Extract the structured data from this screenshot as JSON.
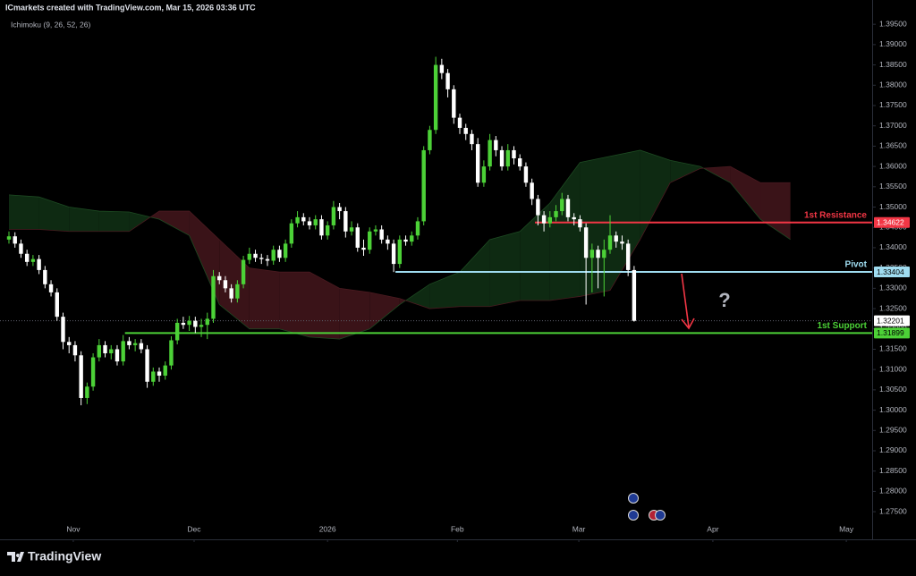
{
  "header": "ICmarkets created with TradingView.com, Mar 15, 2026 03:36 UTC",
  "brand": "TradingView",
  "chart_data": {
    "type": "candlestick",
    "indicator": "Ichimoku (9, 26, 52, 26)",
    "up_color": "#4cd137",
    "down_color": "#ffffff",
    "open": [
      1.342,
      1.3428,
      1.341,
      1.3385,
      1.3365,
      1.3372,
      1.3345,
      1.331,
      1.329,
      1.323,
      1.3168,
      1.316,
      1.3135,
      1.303,
      1.3058,
      1.313,
      1.316,
      1.314,
      1.315,
      1.312,
      1.317,
      1.316,
      1.3165,
      1.315,
      1.307,
      1.3095,
      1.3085,
      1.311,
      1.3172,
      1.3215,
      1.321,
      1.322,
      1.3205,
      1.321,
      1.3225,
      1.333,
      1.332,
      1.33,
      1.3275,
      1.331,
      1.337,
      1.3385,
      1.3375,
      1.3372,
      1.3368,
      1.3395,
      1.3375,
      1.341,
      1.346,
      1.3475,
      1.3465,
      1.3455,
      1.347,
      1.343,
      1.3455,
      1.35,
      1.349,
      1.344,
      1.345,
      1.34,
      1.3395,
      1.344,
      1.3445,
      1.342,
      1.341,
      1.336,
      1.342,
      1.3415,
      1.343,
      1.3465,
      1.364,
      1.369,
      1.385,
      1.383,
      1.379,
      1.372,
      1.3695,
      1.368,
      1.3655,
      1.356,
      1.36,
      1.3665,
      1.364,
      1.36,
      1.364,
      1.362,
      1.36,
      1.356,
      1.352,
      1.348,
      1.346,
      1.3475,
      1.349,
      1.352,
      1.3475,
      1.347,
      1.345,
      1.3375,
      1.3395,
      1.3375,
      1.3395,
      1.343,
      1.3415,
      1.341,
      1.3345
    ],
    "high": [
      1.344,
      1.3438,
      1.342,
      1.3395,
      1.3382,
      1.3382,
      1.3355,
      1.332,
      1.33,
      1.324,
      1.318,
      1.317,
      1.3145,
      1.3068,
      1.314,
      1.3175,
      1.317,
      1.316,
      1.316,
      1.3185,
      1.318,
      1.3175,
      1.3175,
      1.316,
      1.3105,
      1.3105,
      1.312,
      1.3182,
      1.3225,
      1.323,
      1.3232,
      1.323,
      1.3225,
      1.324,
      1.3345,
      1.334,
      1.333,
      1.331,
      1.332,
      1.338,
      1.34,
      1.3395,
      1.3385,
      1.3382,
      1.3405,
      1.3405,
      1.342,
      1.347,
      1.349,
      1.3485,
      1.3475,
      1.348,
      1.348,
      1.3465,
      1.3515,
      1.351,
      1.35,
      1.3465,
      1.346,
      1.342,
      1.345,
      1.3455,
      1.3455,
      1.343,
      1.342,
      1.343,
      1.343,
      1.344,
      1.3475,
      1.365,
      1.37,
      1.387,
      1.3865,
      1.384,
      1.38,
      1.373,
      1.3705,
      1.369,
      1.367,
      1.3615,
      1.368,
      1.3675,
      1.365,
      1.3655,
      1.365,
      1.363,
      1.361,
      1.357,
      1.353,
      1.349,
      1.349,
      1.3505,
      1.3535,
      1.353,
      1.3485,
      1.348,
      1.346,
      1.341,
      1.3405,
      1.342,
      1.348,
      1.344,
      1.343,
      1.342,
      1.3355
    ],
    "low": [
      1.341,
      1.34,
      1.3375,
      1.3355,
      1.3355,
      1.3335,
      1.33,
      1.328,
      1.322,
      1.315,
      1.314,
      1.312,
      1.3012,
      1.3015,
      1.3048,
      1.312,
      1.313,
      1.3125,
      1.311,
      1.311,
      1.315,
      1.3145,
      1.314,
      1.3055,
      1.306,
      1.307,
      1.3075,
      1.31,
      1.3162,
      1.32,
      1.3195,
      1.319,
      1.318,
      1.3175,
      1.3215,
      1.331,
      1.329,
      1.3265,
      1.3265,
      1.33,
      1.336,
      1.3365,
      1.336,
      1.3355,
      1.3358,
      1.3365,
      1.3365,
      1.34,
      1.345,
      1.3455,
      1.3445,
      1.3445,
      1.342,
      1.342,
      1.3445,
      1.347,
      1.3425,
      1.343,
      1.339,
      1.338,
      1.3385,
      1.343,
      1.341,
      1.3395,
      1.334,
      1.335,
      1.3405,
      1.3405,
      1.342,
      1.3455,
      1.363,
      1.368,
      1.3815,
      1.377,
      1.3705,
      1.368,
      1.3665,
      1.364,
      1.355,
      1.355,
      1.359,
      1.3625,
      1.359,
      1.359,
      1.3605,
      1.359,
      1.355,
      1.3505,
      1.3455,
      1.344,
      1.345,
      1.3465,
      1.348,
      1.3465,
      1.3455,
      1.344,
      1.326,
      1.329,
      1.33,
      1.328,
      1.3385,
      1.34,
      1.3395,
      1.333,
      1.3218
    ],
    "close": [
      1.3428,
      1.341,
      1.3385,
      1.3365,
      1.3372,
      1.3345,
      1.331,
      1.329,
      1.323,
      1.3168,
      1.316,
      1.3135,
      1.303,
      1.3058,
      1.313,
      1.316,
      1.314,
      1.315,
      1.312,
      1.317,
      1.316,
      1.3165,
      1.315,
      1.307,
      1.3095,
      1.3085,
      1.311,
      1.3172,
      1.3215,
      1.321,
      1.322,
      1.3205,
      1.321,
      1.3225,
      1.333,
      1.332,
      1.33,
      1.3275,
      1.331,
      1.337,
      1.3385,
      1.3375,
      1.3372,
      1.3368,
      1.3395,
      1.3375,
      1.341,
      1.346,
      1.3475,
      1.3465,
      1.3455,
      1.347,
      1.343,
      1.3455,
      1.35,
      1.349,
      1.344,
      1.345,
      1.34,
      1.3395,
      1.344,
      1.3445,
      1.342,
      1.341,
      1.336,
      1.342,
      1.3415,
      1.343,
      1.3465,
      1.364,
      1.369,
      1.385,
      1.383,
      1.379,
      1.372,
      1.3695,
      1.368,
      1.3655,
      1.356,
      1.36,
      1.3665,
      1.364,
      1.36,
      1.364,
      1.362,
      1.36,
      1.356,
      1.352,
      1.348,
      1.346,
      1.3475,
      1.349,
      1.352,
      1.3475,
      1.347,
      1.345,
      1.3375,
      1.3395,
      1.3375,
      1.3395,
      1.343,
      1.3415,
      1.341,
      1.3345,
      1.322
    ],
    "cloud": {
      "x": [
        0,
        5,
        10,
        15,
        20,
        25,
        30,
        35,
        40,
        45,
        50,
        55,
        60,
        65,
        70,
        75,
        80,
        85,
        90,
        95,
        100,
        105,
        110,
        115,
        120,
        125,
        130
      ],
      "span_a": [
        1.353,
        1.3525,
        1.35,
        1.349,
        1.3488,
        1.347,
        1.343,
        1.326,
        1.32,
        1.32,
        1.318,
        1.3175,
        1.32,
        1.326,
        1.331,
        1.334,
        1.342,
        1.344,
        1.351,
        1.361,
        1.3625,
        1.364,
        1.3615,
        1.36,
        1.356,
        1.347,
        1.342
      ],
      "span_b": [
        1.3445,
        1.3445,
        1.344,
        1.344,
        1.344,
        1.349,
        1.349,
        1.342,
        1.335,
        1.334,
        1.334,
        1.33,
        1.329,
        1.3275,
        1.325,
        1.3255,
        1.3255,
        1.327,
        1.327,
        1.328,
        1.3295,
        1.342,
        1.356,
        1.3595,
        1.36,
        1.356,
        1.356
      ],
      "bull_color": "#0e2a12",
      "bear_color": "#3a1318"
    },
    "levels": [
      {
        "name": "1st Resistance",
        "value": 1.34622,
        "x_start": 87.5,
        "color": "#f23645",
        "tag_text_color": "#ffffff"
      },
      {
        "name": "Pivot",
        "value": 1.33404,
        "x_start": 64.3,
        "color": "#9fdcf0",
        "tag_text_color": "#000000"
      },
      {
        "name": "1st Support",
        "value": 1.31899,
        "x_start": 19.3,
        "color": "#4cd137",
        "tag_text_color": "#000000"
      }
    ],
    "last_price": 1.32201,
    "annotation": "?",
    "xlim": [
      -1.49,
      143.6
    ],
    "xticks": [
      {
        "value": 10.7,
        "label": "Nov"
      },
      {
        "value": 30.8,
        "label": "Dec"
      },
      {
        "value": 53,
        "label": "2026"
      },
      {
        "value": 74.6,
        "label": "Feb"
      },
      {
        "value": 94.8,
        "label": "Mar"
      },
      {
        "value": 117.1,
        "label": "Apr"
      },
      {
        "value": 139.3,
        "label": "May"
      }
    ],
    "ylim": [
      1.2693,
      1.3979
    ],
    "yticks": [
      {
        "value": 1.395,
        "label": "1.39500"
      },
      {
        "value": 1.39,
        "label": "1.39000"
      },
      {
        "value": 1.385,
        "label": "1.38500"
      },
      {
        "value": 1.38,
        "label": "1.38000"
      },
      {
        "value": 1.375,
        "label": "1.37500"
      },
      {
        "value": 1.37,
        "label": "1.37000"
      },
      {
        "value": 1.365,
        "label": "1.36500"
      },
      {
        "value": 1.36,
        "label": "1.36000"
      },
      {
        "value": 1.355,
        "label": "1.35500"
      },
      {
        "value": 1.35,
        "label": "1.35000"
      },
      {
        "value": 1.345,
        "label": "1.34500"
      },
      {
        "value": 1.34,
        "label": "1.34000"
      },
      {
        "value": 1.335,
        "label": "1.33500"
      },
      {
        "value": 1.33,
        "label": "1.33000"
      },
      {
        "value": 1.325,
        "label": "1.32500"
      },
      {
        "value": 1.32,
        "label": "1.32000"
      },
      {
        "value": 1.315,
        "label": "1.31500"
      },
      {
        "value": 1.31,
        "label": "1.31000"
      },
      {
        "value": 1.305,
        "label": "1.30500"
      },
      {
        "value": 1.3,
        "label": "1.30000"
      },
      {
        "value": 1.295,
        "label": "1.29500"
      },
      {
        "value": 1.29,
        "label": "1.29000"
      },
      {
        "value": 1.285,
        "label": "1.28500"
      },
      {
        "value": 1.28,
        "label": "1.28000"
      },
      {
        "value": 1.275,
        "label": "1.27500"
      }
    ],
    "grid": false
  }
}
